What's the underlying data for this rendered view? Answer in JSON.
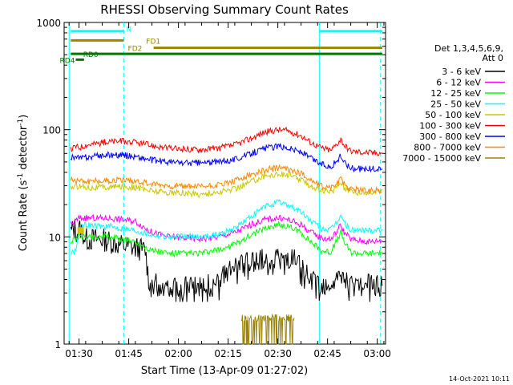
{
  "chart_data": {
    "type": "line",
    "title": "RHESSI Observing Summary Count Rates",
    "xlabel": "Start Time (13-Apr-09 01:27:02)",
    "ylabel": "Count Rate (s⁻¹ detector⁻¹)",
    "yscale": "log",
    "ylim": [
      1,
      1000
    ],
    "xlim_minutes": [
      -1.5,
      95.5
    ],
    "x_unit": "minutes after 01:27:02 UT",
    "x_ticks": [
      {
        "label": "01:30",
        "minute": 3
      },
      {
        "label": "01:45",
        "minute": 18
      },
      {
        "label": "02:00",
        "minute": 33
      },
      {
        "label": "02:15",
        "minute": 48
      },
      {
        "label": "02:30",
        "minute": 63
      },
      {
        "label": "02:45",
        "minute": 78
      },
      {
        "label": "03:00",
        "minute": 93
      }
    ],
    "y_ticks": [
      {
        "label": "1",
        "value": 1
      },
      {
        "label": "10",
        "value": 10
      },
      {
        "label": "100",
        "value": 100
      },
      {
        "label": "1000",
        "value": 1000
      }
    ],
    "legend": {
      "header": [
        "Det 1,3,4,5,6,9,",
        "Att 0"
      ],
      "placement": "right"
    },
    "series": [
      {
        "name": "3 - 6 keV",
        "color": "#000000",
        "points": [
          [
            0.5,
            11
          ],
          [
            1.5,
            12
          ],
          [
            2.5,
            11
          ],
          [
            3.5,
            12
          ],
          [
            5,
            9.5
          ],
          [
            10,
            9.5
          ],
          [
            15,
            8.5
          ],
          [
            19,
            8
          ],
          [
            23,
            7.5
          ],
          [
            24,
            4
          ],
          [
            27,
            3.5
          ],
          [
            35,
            3.5
          ],
          [
            40,
            3.5
          ],
          [
            45,
            3.5
          ],
          [
            47,
            4.5
          ],
          [
            50,
            5
          ],
          [
            53,
            5.5
          ],
          [
            57,
            6
          ],
          [
            60,
            6.2
          ],
          [
            63,
            6.3
          ],
          [
            66,
            6.2
          ],
          [
            68,
            6
          ],
          [
            70,
            5
          ],
          [
            73,
            4
          ],
          [
            76,
            3.5
          ],
          [
            79,
            3.5
          ],
          [
            81,
            3.8
          ],
          [
            82,
            4.5
          ],
          [
            83,
            3.8
          ],
          [
            85,
            3.5
          ],
          [
            88,
            3.5
          ],
          [
            91,
            3.5
          ],
          [
            94.5,
            3.5
          ]
        ]
      },
      {
        "name": "6 - 12 keV",
        "color": "#ff00ff",
        "points": [
          [
            0.5,
            13
          ],
          [
            3,
            15
          ],
          [
            6,
            15
          ],
          [
            9,
            15
          ],
          [
            12,
            15
          ],
          [
            16,
            14.5
          ],
          [
            20,
            14
          ],
          [
            25,
            11
          ],
          [
            30,
            10
          ],
          [
            35,
            9.8
          ],
          [
            40,
            9.6
          ],
          [
            45,
            10
          ],
          [
            50,
            11
          ],
          [
            55,
            13
          ],
          [
            59,
            14.5
          ],
          [
            63,
            15
          ],
          [
            66,
            14.5
          ],
          [
            70,
            13
          ],
          [
            73,
            11
          ],
          [
            76,
            9.8
          ],
          [
            79,
            9.5
          ],
          [
            81,
            11.5
          ],
          [
            82,
            13
          ],
          [
            83,
            11
          ],
          [
            85,
            9.5
          ],
          [
            88,
            9.2
          ],
          [
            91,
            9
          ],
          [
            94.5,
            9.3
          ]
        ]
      },
      {
        "name": "12 - 25 keV",
        "color": "#00ff00",
        "points": [
          [
            0.5,
            9
          ],
          [
            3,
            10
          ],
          [
            6,
            10
          ],
          [
            9,
            10
          ],
          [
            12,
            10
          ],
          [
            16,
            9.5
          ],
          [
            20,
            9
          ],
          [
            25,
            7.5
          ],
          [
            30,
            7
          ],
          [
            35,
            7
          ],
          [
            40,
            7
          ],
          [
            45,
            7.5
          ],
          [
            50,
            8.5
          ],
          [
            55,
            10.5
          ],
          [
            59,
            12
          ],
          [
            63,
            13
          ],
          [
            66,
            12.5
          ],
          [
            70,
            11
          ],
          [
            73,
            9
          ],
          [
            76,
            7.5
          ],
          [
            79,
            7.2
          ],
          [
            81,
            9.5
          ],
          [
            82,
            11
          ],
          [
            83,
            9
          ],
          [
            85,
            7.2
          ],
          [
            88,
            7
          ],
          [
            91,
            7
          ],
          [
            94.5,
            7.2
          ]
        ]
      },
      {
        "name": "25 - 50 keV",
        "color": "#00ffff",
        "points": [
          [
            0.5,
            7
          ],
          [
            2,
            7.5
          ],
          [
            3,
            12
          ],
          [
            5,
            13
          ],
          [
            9,
            12.5
          ],
          [
            12,
            12.5
          ],
          [
            16,
            12
          ],
          [
            20,
            11.5
          ],
          [
            25,
            10.5
          ],
          [
            30,
            10
          ],
          [
            35,
            10
          ],
          [
            40,
            10
          ],
          [
            45,
            10.5
          ],
          [
            50,
            12
          ],
          [
            55,
            15.5
          ],
          [
            59,
            19
          ],
          [
            63,
            21
          ],
          [
            66,
            20
          ],
          [
            70,
            17
          ],
          [
            73,
            14
          ],
          [
            76,
            12
          ],
          [
            79,
            11.5
          ],
          [
            81,
            14
          ],
          [
            82,
            16
          ],
          [
            83,
            13.5
          ],
          [
            85,
            11.5
          ],
          [
            88,
            11.5
          ],
          [
            91,
            11.5
          ],
          [
            94.5,
            11.8
          ]
        ]
      },
      {
        "name": "50 - 100 keV",
        "color": "#c8c800",
        "points": [
          [
            0.5,
            29
          ],
          [
            3,
            30
          ],
          [
            6,
            29
          ],
          [
            9,
            29
          ],
          [
            12,
            29
          ],
          [
            16,
            29.5
          ],
          [
            20,
            29
          ],
          [
            25,
            27
          ],
          [
            30,
            26
          ],
          [
            35,
            25.5
          ],
          [
            40,
            25
          ],
          [
            45,
            26
          ],
          [
            50,
            28
          ],
          [
            55,
            33
          ],
          [
            59,
            37
          ],
          [
            63,
            38.5
          ],
          [
            66,
            38
          ],
          [
            70,
            34
          ],
          [
            73,
            30
          ],
          [
            76,
            27
          ],
          [
            79,
            26
          ],
          [
            81,
            30
          ],
          [
            82,
            33
          ],
          [
            83,
            29
          ],
          [
            85,
            26.5
          ],
          [
            88,
            26
          ],
          [
            91,
            26
          ],
          [
            94.5,
            26.5
          ]
        ]
      },
      {
        "name": "100 - 300 keV",
        "color": "#ff0000",
        "points": [
          [
            0.5,
            65
          ],
          [
            2,
            70
          ],
          [
            3,
            68
          ],
          [
            5,
            72
          ],
          [
            9,
            75
          ],
          [
            12,
            77
          ],
          [
            16,
            78
          ],
          [
            20,
            76
          ],
          [
            25,
            71
          ],
          [
            30,
            67
          ],
          [
            35,
            65.5
          ],
          [
            40,
            65.5
          ],
          [
            45,
            67
          ],
          [
            50,
            72
          ],
          [
            55,
            83
          ],
          [
            59,
            95
          ],
          [
            63,
            100
          ],
          [
            66,
            98
          ],
          [
            70,
            88
          ],
          [
            73,
            76
          ],
          [
            76,
            68
          ],
          [
            79,
            64
          ],
          [
            81,
            75
          ],
          [
            82,
            82
          ],
          [
            83,
            72
          ],
          [
            85,
            63
          ],
          [
            88,
            62
          ],
          [
            91,
            61
          ],
          [
            94.5,
            61
          ]
        ]
      },
      {
        "name": "300 - 800 keV",
        "color": "#0000ff",
        "points": [
          [
            0.5,
            56
          ],
          [
            2,
            55
          ],
          [
            3,
            54
          ],
          [
            5,
            55
          ],
          [
            9,
            57
          ],
          [
            12,
            58
          ],
          [
            16,
            58
          ],
          [
            20,
            56
          ],
          [
            25,
            52
          ],
          [
            30,
            50
          ],
          [
            35,
            49
          ],
          [
            40,
            49
          ],
          [
            45,
            50
          ],
          [
            50,
            53
          ],
          [
            55,
            60
          ],
          [
            59,
            67
          ],
          [
            63,
            70
          ],
          [
            66,
            68
          ],
          [
            70,
            62
          ],
          [
            73,
            54
          ],
          [
            76,
            48
          ],
          [
            79,
            45
          ],
          [
            81,
            52
          ],
          [
            82,
            57
          ],
          [
            83,
            50
          ],
          [
            85,
            44
          ],
          [
            88,
            43
          ],
          [
            91,
            43
          ],
          [
            94.5,
            43
          ]
        ]
      },
      {
        "name": "800 - 7000 keV",
        "color": "#ff8800",
        "points": [
          [
            0.5,
            34
          ],
          [
            3,
            34
          ],
          [
            6,
            33
          ],
          [
            9,
            33.5
          ],
          [
            12,
            33.5
          ],
          [
            16,
            34
          ],
          [
            20,
            33.5
          ],
          [
            25,
            31
          ],
          [
            30,
            30
          ],
          [
            35,
            29.5
          ],
          [
            40,
            29.5
          ],
          [
            45,
            30.5
          ],
          [
            50,
            33
          ],
          [
            55,
            38
          ],
          [
            59,
            42
          ],
          [
            63,
            44
          ],
          [
            66,
            43
          ],
          [
            70,
            39
          ],
          [
            73,
            34
          ],
          [
            76,
            30
          ],
          [
            79,
            29
          ],
          [
            81,
            32
          ],
          [
            82,
            35
          ],
          [
            83,
            31
          ],
          [
            85,
            28
          ],
          [
            88,
            27.5
          ],
          [
            91,
            27
          ],
          [
            94.5,
            27.5
          ]
        ]
      },
      {
        "name": "7000 - 15000 keV",
        "color": "#9b8500",
        "points": [
          [
            52,
            1
          ],
          [
            52,
            1.8
          ],
          [
            57,
            1.8
          ],
          [
            57,
            1
          ],
          [
            57.5,
            1
          ],
          [
            57.5,
            1.8
          ],
          [
            68,
            1.8
          ],
          [
            68,
            1
          ]
        ]
      }
    ],
    "bar_labels": [
      {
        "text": "N",
        "color": "#00ffff"
      },
      {
        "text": "FD1",
        "color": "#9b8500"
      },
      {
        "text": "FD2",
        "color": "#9b8500"
      },
      {
        "text": "RD0",
        "color": "#007800"
      },
      {
        "text": "RD4",
        "color": "#007800"
      }
    ],
    "flag_bars": [
      {
        "label": "N",
        "color": "#00ffff",
        "value": 830,
        "segments": [
          [
            0.5,
            16.5
          ],
          [
            75.5,
            94.5
          ]
        ]
      },
      {
        "label": "FD1",
        "color": "#9b8500",
        "value": 680,
        "segments": [
          [
            0.5,
            16.5
          ]
        ]
      },
      {
        "label": "FD2",
        "color": "#9b8500",
        "value": 580,
        "segments": [
          [
            25.5,
            94.5
          ]
        ]
      },
      {
        "label": "RD0",
        "color": "#007800",
        "value": 510,
        "segments": [
          [
            0.5,
            94.5
          ]
        ]
      },
      {
        "label": "RD4",
        "color": "#007800",
        "value": 450,
        "segments": [
          [
            2,
            4.5
          ]
        ]
      }
    ],
    "vertical_markers": [
      {
        "minute": 0.0,
        "color": "#00ffff",
        "style": "solid"
      },
      {
        "minute": 16.5,
        "color": "#00ffff",
        "style": "dashed"
      },
      {
        "minute": 75.5,
        "color": "#00ffff",
        "style": "solid"
      },
      {
        "minute": 94.0,
        "color": "#00ffff",
        "style": "dashed"
      }
    ],
    "attenuator_marker": {
      "minute": 3.5,
      "value": 11.5,
      "color": "#d8c000"
    },
    "timestamp": "14-Oct-2021 10:11",
    "grid": false
  }
}
